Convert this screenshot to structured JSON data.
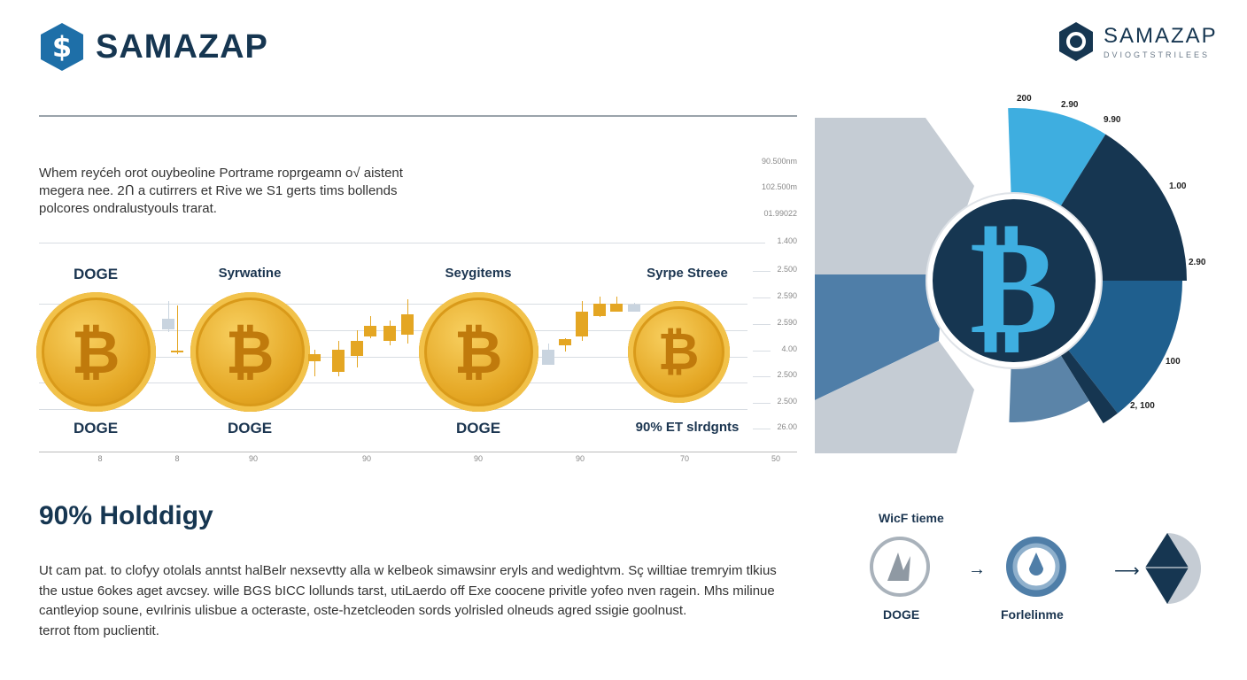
{
  "header": {
    "brand": "SAMAZAP"
  },
  "corner_brand": {
    "name": "SAMAZAP",
    "tagline": "DVIOGTSTRILEES"
  },
  "intro": "Whem reyćeh orot ouybeoline Portrame roprgeamn o√ aistent megera nee. 2Ո a cutirrers et Rive we S1 gerts tims bollends polcores ondralustyouls trarat.",
  "axis_right": [
    "90.500nm",
    "102.500m",
    "01.99022",
    "1.400",
    "2.500",
    "2.590",
    "2.590",
    "4.00",
    "2.500",
    "2.500",
    "26.00"
  ],
  "coins_top": [
    "DOGE",
    "Syrwatine",
    "Seygitems",
    "Syrpe Streee"
  ],
  "coins_bottom": [
    "DOGE",
    "DOGE",
    "DOGE",
    "90% ET slrdgnts"
  ],
  "x_labels": [
    "8",
    "8",
    "90",
    "90",
    "90",
    "90",
    "70",
    "50"
  ],
  "section_title": "90% Holddigy",
  "body": [
    "Ut cam pat. to clofyy otolals anntst halBelr nexsevtty alla w kelbeok simawsinr eryls and wedightvm. Sç willtiae tremryim tlkius",
    "the ustue 6okes aget avcsey. wille BGS bICC lollunds tarst, utiLaerdo off Exe coocene privitle yofeo nven ragein. Mhs milinue",
    "cantleyiop soune, evılrinis ulisbue a octeraste, oste-hzetcleoden sords yolrisled olneuds agred ssigie goolnust.",
    "terrot ftom puclientit."
  ],
  "flow": {
    "title": "WicF tieme",
    "items": [
      "DOGE",
      "Forlelinme"
    ]
  },
  "pie_labels": [
    "200",
    "2.90",
    "9.90",
    "1.00",
    "2.90",
    "100",
    "2, 100"
  ],
  "colors": {
    "navy": "#143a56",
    "lightblue": "#3eaee0",
    "midblue": "#1f5f8e",
    "steel": "#5b84a8",
    "gold": "#e4a623"
  }
}
